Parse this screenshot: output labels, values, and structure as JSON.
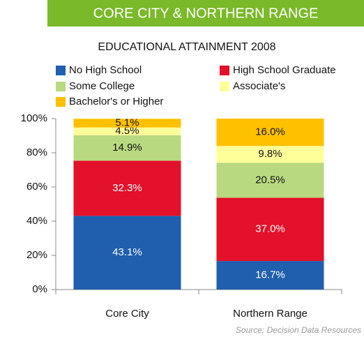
{
  "chart_data": {
    "type": "stacked_bar",
    "title": "CORE CITY & NORTHERN RANGE",
    "subtitle": "EDUCATIONAL ATTAINMENT 2008",
    "source": "Source: Decision Data Resources",
    "categories": [
      "Core City",
      "Northern Range"
    ],
    "series": [
      {
        "name": "No High School",
        "color": "#1f5fae",
        "values": [
          43.1,
          16.7
        ],
        "value_labels": [
          "43.1%",
          "16.7%"
        ]
      },
      {
        "name": "High School Graduate",
        "color": "#e3112a",
        "values": [
          32.3,
          37.0
        ],
        "value_labels": [
          "32.3%",
          "37.0%"
        ]
      },
      {
        "name": "Some College",
        "color": "#b9d980",
        "values": [
          14.9,
          20.5
        ],
        "value_labels": [
          "14.9%",
          "20.5%"
        ]
      },
      {
        "name": "Associate's",
        "color": "#ffff99",
        "values": [
          4.5,
          9.8
        ],
        "value_labels": [
          "4.5%",
          "9.8%"
        ]
      },
      {
        "name": "Bachelor's or Higher",
        "color": "#ffc000",
        "values": [
          5.1,
          16.0
        ],
        "value_labels": [
          "5.1%",
          "16.0%"
        ]
      }
    ],
    "ylim": [
      0,
      100
    ],
    "yticks": [
      {
        "value": 0,
        "label": "0%"
      },
      {
        "value": 20,
        "label": "20%"
      },
      {
        "value": 40,
        "label": "40%"
      },
      {
        "value": 60,
        "label": "60%"
      },
      {
        "value": 80,
        "label": "80%"
      },
      {
        "value": 100,
        "label": "100%"
      }
    ],
    "header_color": "#7ab929"
  }
}
